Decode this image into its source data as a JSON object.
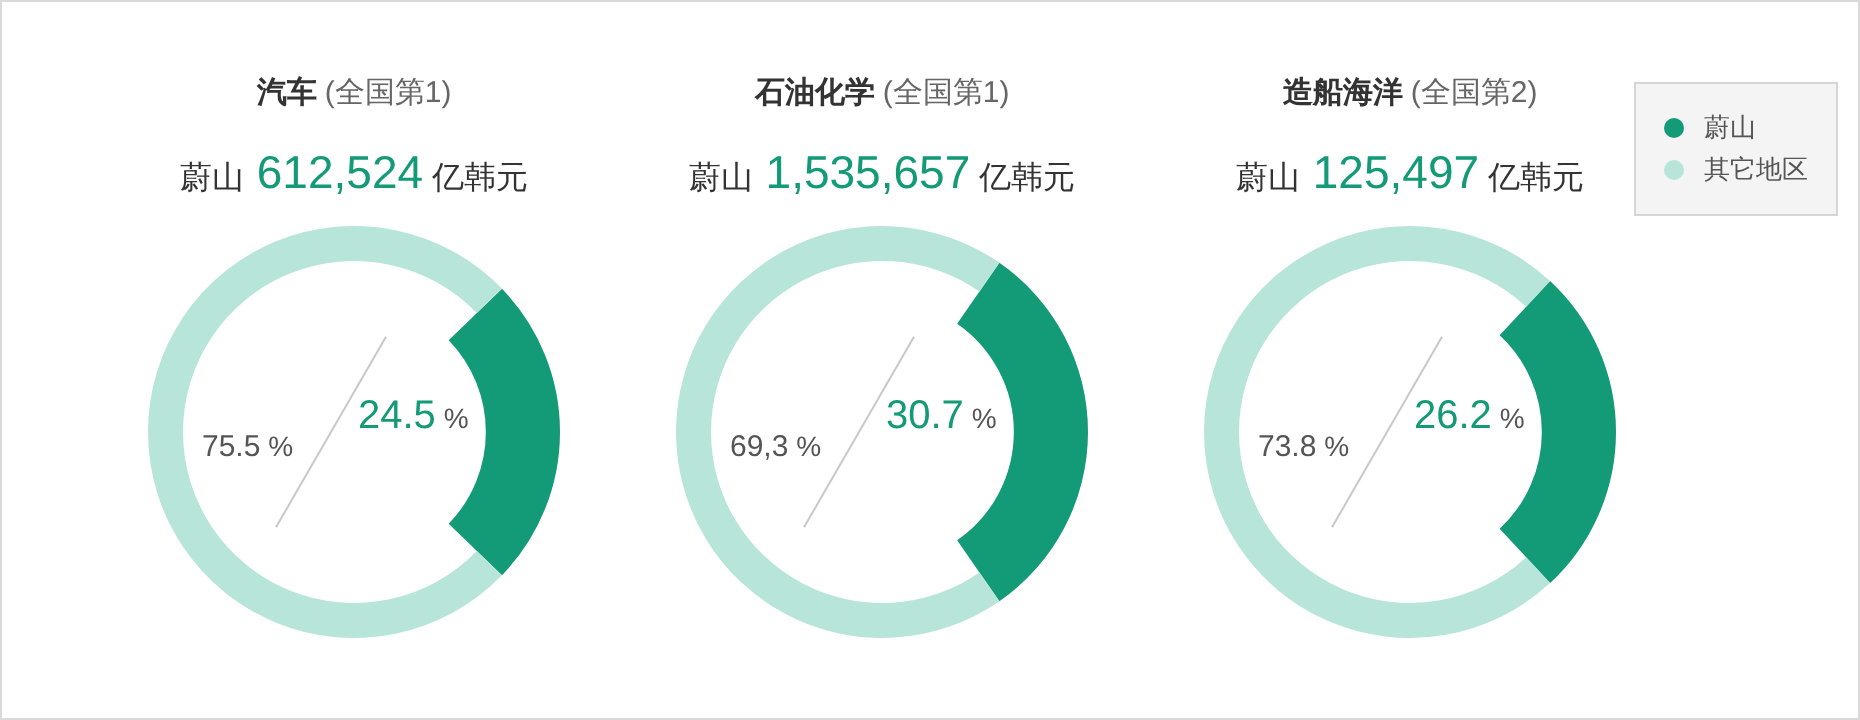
{
  "chart_data": [
    {
      "type": "donut",
      "title": "汽车 (全国第1)",
      "subtitle": "蔚山 612,524 亿韩元",
      "categories": [
        null,
        null
      ],
      "values": [
        24.5,
        75.5
      ],
      "colors": [
        "#139a77",
        "#b8e5da"
      ],
      "value_labels": [
        "24.5 %",
        "75.5 %"
      ]
    },
    {
      "type": "donut",
      "title": "石油化学 (全国第1)",
      "subtitle": "蔚山 1,535,657 亿韩元",
      "categories": [
        null,
        null
      ],
      "values": [
        30.7,
        69.3
      ],
      "colors": [
        "#139a77",
        "#b8e5da"
      ],
      "value_labels": [
        "30.7 %",
        "69,3 %"
      ]
    },
    {
      "type": "donut",
      "title": "造船海洋 (全国第2)",
      "subtitle": "蔚山 125,497 亿韩元",
      "categories": [
        "蔚山",
        "其它地区"
      ],
      "values": [
        26.2,
        73.8
      ],
      "colors": [
        "#139a77",
        "#b8e5da"
      ],
      "value_labels": [
        "26.2 %",
        "73.8 %"
      ],
      "legend": "top right"
    }
  ]
}
